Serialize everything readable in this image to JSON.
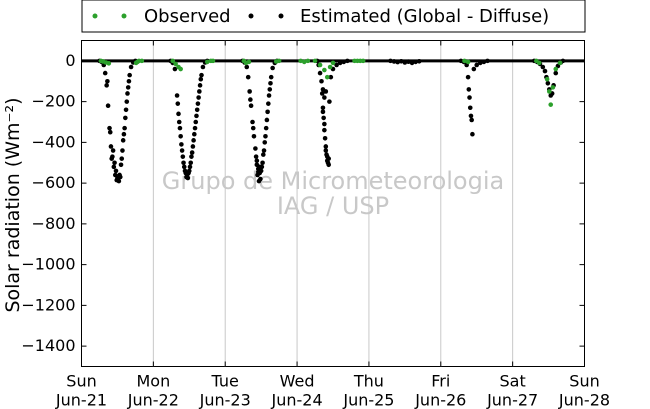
{
  "chart_data": {
    "type": "scatter",
    "ylabel": "Solar radiation (Wm⁻²)",
    "xlim": [
      0,
      7
    ],
    "ylim": [
      -1500,
      100
    ],
    "yticks": [
      0,
      -200,
      -400,
      -600,
      -800,
      -1000,
      -1200,
      -1400
    ],
    "ytick_labels": [
      "0",
      "−200",
      "−400",
      "−600",
      "−800",
      "−1000",
      "−1200",
      "−1400"
    ],
    "xticks": [
      {
        "x": 0,
        "day": "Sun",
        "date": "Jun-21"
      },
      {
        "x": 1,
        "day": "Mon",
        "date": "Jun-22"
      },
      {
        "x": 2,
        "day": "Tue",
        "date": "Jun-23"
      },
      {
        "x": 3,
        "day": "Wed",
        "date": "Jun-24"
      },
      {
        "x": 4,
        "day": "Thu",
        "date": "Jun-25"
      },
      {
        "x": 5,
        "day": "Fri",
        "date": "Jun-26"
      },
      {
        "x": 6,
        "day": "Sat",
        "date": "Jun-27"
      },
      {
        "x": 7,
        "day": "Sun",
        "date": "Jun-28"
      }
    ],
    "grid": "vertical",
    "legend_position": "top",
    "watermark": [
      "Grupo de Micrometeorologia",
      "IAG / USP"
    ],
    "series": [
      {
        "name": "Observed",
        "color": "#2ca02c",
        "points": [
          [
            0.27,
            0
          ],
          [
            0.3,
            -3
          ],
          [
            0.34,
            -8
          ],
          [
            0.38,
            -12
          ],
          [
            0.76,
            -10
          ],
          [
            0.78,
            -5
          ],
          [
            0.8,
            0
          ],
          [
            0.84,
            0
          ],
          [
            1.27,
            0
          ],
          [
            1.31,
            -15
          ],
          [
            1.35,
            -30
          ],
          [
            1.38,
            -40
          ],
          [
            1.75,
            -5
          ],
          [
            1.8,
            0
          ],
          [
            1.83,
            0
          ],
          [
            2.26,
            0
          ],
          [
            2.29,
            -10
          ],
          [
            2.33,
            -5
          ],
          [
            2.71,
            -3
          ],
          [
            2.75,
            0
          ],
          [
            3.05,
            0
          ],
          [
            3.1,
            -5
          ],
          [
            3.15,
            0
          ],
          [
            3.25,
            0
          ],
          [
            3.32,
            -20
          ],
          [
            3.38,
            -45
          ],
          [
            3.42,
            -80
          ],
          [
            3.46,
            -30
          ],
          [
            3.5,
            -10
          ],
          [
            3.8,
            0
          ],
          [
            3.84,
            0
          ],
          [
            3.88,
            0
          ],
          [
            3.92,
            0
          ],
          [
            5.33,
            0
          ],
          [
            5.38,
            -5
          ],
          [
            6.33,
            0
          ],
          [
            6.37,
            -10
          ],
          [
            6.48,
            -90
          ],
          [
            6.51,
            -150
          ],
          [
            6.53,
            -215
          ],
          [
            6.56,
            -130
          ],
          [
            6.6,
            -40
          ],
          [
            6.66,
            -10
          ]
        ]
      },
      {
        "name": "Estimated (Global - Diffuse)",
        "color": "#000000",
        "points": [
          [
            0.25,
            0
          ],
          [
            0.28,
            -5
          ],
          [
            0.31,
            -20
          ],
          [
            0.33,
            -60
          ],
          [
            0.35,
            -120
          ],
          [
            0.37,
            -220
          ],
          [
            0.39,
            -330
          ],
          [
            0.41,
            -420
          ],
          [
            0.43,
            -470
          ],
          [
            0.45,
            -520
          ],
          [
            0.47,
            -560
          ],
          [
            0.49,
            -585
          ],
          [
            0.51,
            -580
          ],
          [
            0.53,
            -560
          ],
          [
            0.55,
            -510
          ],
          [
            0.57,
            -440
          ],
          [
            0.59,
            -360
          ],
          [
            0.61,
            -280
          ],
          [
            0.63,
            -200
          ],
          [
            0.65,
            -130
          ],
          [
            0.67,
            -70
          ],
          [
            0.69,
            -30
          ],
          [
            0.72,
            -8
          ],
          [
            0.75,
            0
          ],
          [
            0.36,
            -100
          ],
          [
            0.4,
            -350
          ],
          [
            0.44,
            -440
          ],
          [
            0.48,
            -540
          ],
          [
            0.52,
            -590
          ],
          [
            0.56,
            -480
          ],
          [
            0.6,
            -330
          ],
          [
            0.64,
            -160
          ],
          [
            0.42,
            -480
          ],
          [
            0.46,
            -500
          ],
          [
            0.5,
            -575
          ],
          [
            0.54,
            -570
          ],
          [
            0.58,
            -390
          ],
          [
            0.62,
            -240
          ],
          [
            0.66,
            -100
          ],
          [
            1.24,
            0
          ],
          [
            1.27,
            -10
          ],
          [
            1.3,
            -40
          ],
          [
            1.33,
            -170
          ],
          [
            1.35,
            -260
          ],
          [
            1.37,
            -330
          ],
          [
            1.39,
            -410
          ],
          [
            1.41,
            -470
          ],
          [
            1.43,
            -520
          ],
          [
            1.45,
            -550
          ],
          [
            1.47,
            -560
          ],
          [
            1.49,
            -550
          ],
          [
            1.51,
            -520
          ],
          [
            1.53,
            -470
          ],
          [
            1.55,
            -420
          ],
          [
            1.57,
            -360
          ],
          [
            1.59,
            -300
          ],
          [
            1.61,
            -240
          ],
          [
            1.63,
            -180
          ],
          [
            1.65,
            -120
          ],
          [
            1.67,
            -70
          ],
          [
            1.69,
            -30
          ],
          [
            1.72,
            -8
          ],
          [
            1.75,
            0
          ],
          [
            1.34,
            -210
          ],
          [
            1.36,
            -300
          ],
          [
            1.38,
            -370
          ],
          [
            1.4,
            -440
          ],
          [
            1.42,
            -500
          ],
          [
            1.44,
            -540
          ],
          [
            1.46,
            -570
          ],
          [
            1.48,
            -575
          ],
          [
            1.5,
            -540
          ],
          [
            1.52,
            -500
          ],
          [
            1.54,
            -450
          ],
          [
            1.56,
            -390
          ],
          [
            1.58,
            -330
          ],
          [
            1.6,
            -270
          ],
          [
            1.62,
            -210
          ],
          [
            1.64,
            -150
          ],
          [
            1.66,
            -90
          ],
          [
            2.24,
            0
          ],
          [
            2.27,
            -8
          ],
          [
            2.3,
            -30
          ],
          [
            2.32,
            -80
          ],
          [
            2.34,
            -150
          ],
          [
            2.36,
            -220
          ],
          [
            2.38,
            -300
          ],
          [
            2.4,
            -370
          ],
          [
            2.42,
            -430
          ],
          [
            2.44,
            -490
          ],
          [
            2.46,
            -530
          ],
          [
            2.48,
            -550
          ],
          [
            2.5,
            -540
          ],
          [
            2.52,
            -500
          ],
          [
            2.54,
            -440
          ],
          [
            2.56,
            -370
          ],
          [
            2.58,
            -290
          ],
          [
            2.6,
            -210
          ],
          [
            2.62,
            -140
          ],
          [
            2.64,
            -80
          ],
          [
            2.66,
            -35
          ],
          [
            2.69,
            -10
          ],
          [
            2.72,
            0
          ],
          [
            2.35,
            -190
          ],
          [
            2.39,
            -330
          ],
          [
            2.43,
            -470
          ],
          [
            2.45,
            -560
          ],
          [
            2.47,
            -590
          ],
          [
            2.49,
            -580
          ],
          [
            2.51,
            -520
          ],
          [
            2.53,
            -460
          ],
          [
            2.55,
            -400
          ],
          [
            2.57,
            -330
          ],
          [
            2.59,
            -250
          ],
          [
            2.61,
            -170
          ],
          [
            2.63,
            -110
          ],
          [
            2.44,
            -510
          ],
          [
            2.46,
            -545
          ],
          [
            2.48,
            -520
          ],
          [
            3.28,
            0
          ],
          [
            3.3,
            -20
          ],
          [
            3.32,
            -60
          ],
          [
            3.34,
            -100
          ],
          [
            3.35,
            -160
          ],
          [
            3.36,
            -230
          ],
          [
            3.37,
            -280
          ],
          [
            3.38,
            -340
          ],
          [
            3.39,
            -380
          ],
          [
            3.4,
            -420
          ],
          [
            3.41,
            -460
          ],
          [
            3.42,
            -490
          ],
          [
            3.43,
            -500
          ],
          [
            3.44,
            -480
          ],
          [
            3.45,
            -200
          ],
          [
            3.47,
            -80
          ],
          [
            3.5,
            -40
          ],
          [
            3.55,
            -20
          ],
          [
            3.6,
            -10
          ],
          [
            3.65,
            -5
          ],
          [
            3.7,
            0
          ],
          [
            3.36,
            -250
          ],
          [
            3.38,
            -310
          ],
          [
            3.4,
            -440
          ],
          [
            3.42,
            -470
          ],
          [
            3.44,
            -510
          ],
          [
            3.4,
            -150
          ],
          [
            3.38,
            -180
          ],
          [
            3.36,
            -140
          ],
          [
            4.3,
            0
          ],
          [
            4.35,
            -3
          ],
          [
            4.4,
            -6
          ],
          [
            4.45,
            -2
          ],
          [
            4.5,
            -8
          ],
          [
            4.55,
            -4
          ],
          [
            4.6,
            -10
          ],
          [
            4.65,
            -5
          ],
          [
            4.7,
            -2
          ],
          [
            5.28,
            0
          ],
          [
            5.32,
            -5
          ],
          [
            5.36,
            -20
          ],
          [
            5.38,
            -80
          ],
          [
            5.39,
            -140
          ],
          [
            5.4,
            -180
          ],
          [
            5.41,
            -230
          ],
          [
            5.42,
            -270
          ],
          [
            5.43,
            -290
          ],
          [
            5.44,
            -360
          ],
          [
            5.46,
            -40
          ],
          [
            5.5,
            -20
          ],
          [
            5.55,
            -10
          ],
          [
            5.6,
            -5
          ],
          [
            5.65,
            0
          ],
          [
            6.3,
            0
          ],
          [
            6.34,
            -5
          ],
          [
            6.38,
            -15
          ],
          [
            6.42,
            -30
          ],
          [
            6.45,
            -50
          ],
          [
            6.47,
            -80
          ],
          [
            6.49,
            -110
          ],
          [
            6.51,
            -140
          ],
          [
            6.53,
            -170
          ],
          [
            6.55,
            -160
          ],
          [
            6.57,
            -120
          ],
          [
            6.6,
            -60
          ],
          [
            6.63,
            -25
          ],
          [
            6.67,
            -8
          ],
          [
            6.7,
            0
          ]
        ]
      }
    ]
  }
}
